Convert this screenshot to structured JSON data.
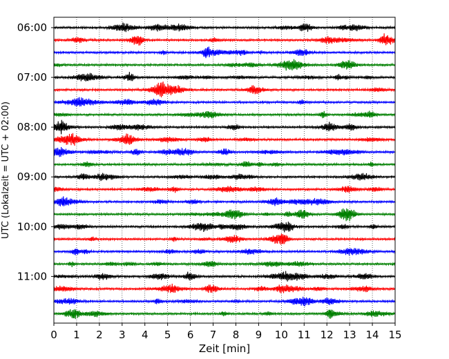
{
  "chart_data": {
    "type": "line",
    "title": "",
    "xlabel": "Zeit  [min]",
    "ylabel": "UTC (Lokalzeit = UTC + 02:00)",
    "xlim": [
      0,
      15
    ],
    "x_ticks": [
      "0",
      "1",
      "2",
      "3",
      "4",
      "5",
      "6",
      "7",
      "8",
      "9",
      "10",
      "11",
      "12",
      "13",
      "14",
      "15"
    ],
    "y_ticks": [
      "06:00",
      "07:00",
      "08:00",
      "09:00",
      "10:00",
      "11:00"
    ],
    "grid": "vertical-dotted",
    "trace_minutes": 15,
    "trace_colors": [
      "#000000",
      "#ff0000",
      "#0000ff",
      "#008000"
    ],
    "traces": [
      {
        "start": "06:00"
      },
      {
        "start": "06:15"
      },
      {
        "start": "06:30"
      },
      {
        "start": "06:45"
      },
      {
        "start": "07:00"
      },
      {
        "start": "07:15"
      },
      {
        "start": "07:30"
      },
      {
        "start": "07:45"
      },
      {
        "start": "08:00"
      },
      {
        "start": "08:15"
      },
      {
        "start": "08:30"
      },
      {
        "start": "08:45"
      },
      {
        "start": "09:00"
      },
      {
        "start": "09:15"
      },
      {
        "start": "09:30"
      },
      {
        "start": "09:45"
      },
      {
        "start": "10:00"
      },
      {
        "start": "10:15"
      },
      {
        "start": "10:30"
      },
      {
        "start": "10:45"
      },
      {
        "start": "11:00"
      },
      {
        "start": "11:15"
      },
      {
        "start": "11:30"
      },
      {
        "start": "11:45"
      }
    ]
  }
}
